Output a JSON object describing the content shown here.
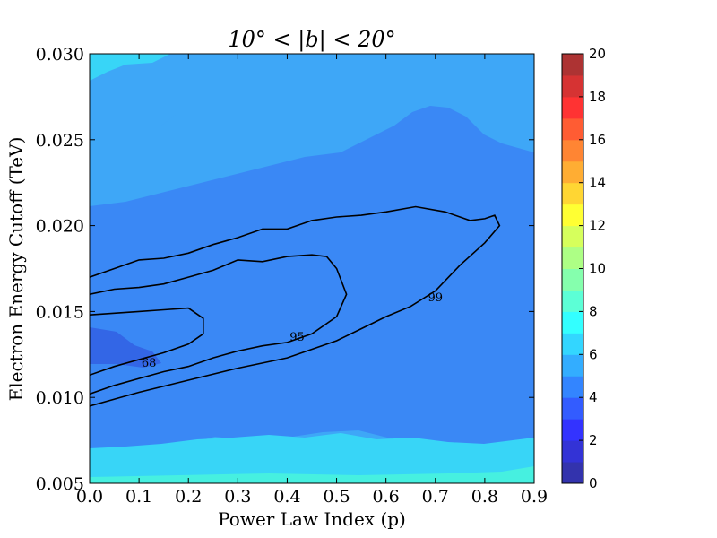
{
  "chart_data": {
    "type": "heatmap",
    "title": "10° < |b| < 20°",
    "xlabel": "Power Law Index (p)",
    "ylabel": "Electron Energy Cutoff (TeV)",
    "xlim": [
      0.0,
      0.9
    ],
    "ylim": [
      0.005,
      0.03
    ],
    "x_ticks": [
      "0.0",
      "0.1",
      "0.2",
      "0.3",
      "0.4",
      "0.5",
      "0.6",
      "0.7",
      "0.8",
      "0.9"
    ],
    "y_ticks": [
      "0.005",
      "0.010",
      "0.015",
      "0.020",
      "0.025",
      "0.030"
    ],
    "colorbar": {
      "min": 0,
      "max": 20,
      "step": 1,
      "tick_labels": [
        "0",
        "2",
        "4",
        "6",
        "8",
        "10",
        "12",
        "14",
        "16",
        "18",
        "20"
      ],
      "colormap": "jet (alpha ~0.8)"
    },
    "fill_levels": [
      {
        "level": "3-4",
        "color": "#3366e6"
      },
      {
        "level": "4-5",
        "color": "#3a88f5"
      },
      {
        "level": "5-6",
        "color": "#3ea7f7"
      },
      {
        "level": "6-7",
        "color": "#38d5f7"
      },
      {
        "level": "7-8",
        "color": "#46f0e0"
      }
    ],
    "contours": [
      {
        "label": "68",
        "label_pos": [
          0.12,
          0.012
        ],
        "points": [
          [
            0.0,
            0.0113
          ],
          [
            0.05,
            0.0118
          ],
          [
            0.1,
            0.0122
          ],
          [
            0.15,
            0.0126
          ],
          [
            0.2,
            0.0131
          ],
          [
            0.23,
            0.0137
          ],
          [
            0.23,
            0.0146
          ],
          [
            0.2,
            0.0152
          ],
          [
            0.15,
            0.0151
          ],
          [
            0.1,
            0.015
          ],
          [
            0.05,
            0.0149
          ],
          [
            0.0,
            0.0148
          ]
        ]
      },
      {
        "label": "95",
        "label_pos": [
          0.42,
          0.0135
        ],
        "points": [
          [
            0.0,
            0.0102
          ],
          [
            0.05,
            0.0107
          ],
          [
            0.1,
            0.0111
          ],
          [
            0.15,
            0.0115
          ],
          [
            0.2,
            0.0118
          ],
          [
            0.25,
            0.0123
          ],
          [
            0.3,
            0.0127
          ],
          [
            0.35,
            0.013
          ],
          [
            0.4,
            0.0132
          ],
          [
            0.45,
            0.0137
          ],
          [
            0.5,
            0.0147
          ],
          [
            0.52,
            0.016
          ],
          [
            0.5,
            0.0175
          ],
          [
            0.48,
            0.0182
          ],
          [
            0.45,
            0.0183
          ],
          [
            0.4,
            0.0182
          ],
          [
            0.35,
            0.0179
          ],
          [
            0.3,
            0.018
          ],
          [
            0.25,
            0.0174
          ],
          [
            0.2,
            0.017
          ],
          [
            0.15,
            0.0166
          ],
          [
            0.1,
            0.0164
          ],
          [
            0.05,
            0.0163
          ],
          [
            0.0,
            0.016
          ]
        ]
      },
      {
        "label": "99",
        "label_pos": [
          0.7,
          0.0158
        ],
        "points": [
          [
            0.0,
            0.0095
          ],
          [
            0.1,
            0.0103
          ],
          [
            0.2,
            0.011
          ],
          [
            0.3,
            0.0117
          ],
          [
            0.4,
            0.0123
          ],
          [
            0.5,
            0.0133
          ],
          [
            0.55,
            0.014
          ],
          [
            0.6,
            0.0147
          ],
          [
            0.65,
            0.0153
          ],
          [
            0.7,
            0.0162
          ],
          [
            0.75,
            0.0177
          ],
          [
            0.8,
            0.019
          ],
          [
            0.83,
            0.02
          ],
          [
            0.82,
            0.0206
          ],
          [
            0.8,
            0.0204
          ],
          [
            0.77,
            0.0203
          ],
          [
            0.72,
            0.0208
          ],
          [
            0.66,
            0.0211
          ],
          [
            0.6,
            0.0208
          ],
          [
            0.55,
            0.0206
          ],
          [
            0.5,
            0.0205
          ],
          [
            0.45,
            0.0203
          ],
          [
            0.4,
            0.0198
          ],
          [
            0.35,
            0.0198
          ],
          [
            0.3,
            0.0193
          ],
          [
            0.25,
            0.0189
          ],
          [
            0.2,
            0.0184
          ],
          [
            0.15,
            0.0181
          ],
          [
            0.1,
            0.018
          ],
          [
            0.05,
            0.0175
          ],
          [
            0.0,
            0.017
          ]
        ]
      }
    ],
    "grid": false
  }
}
